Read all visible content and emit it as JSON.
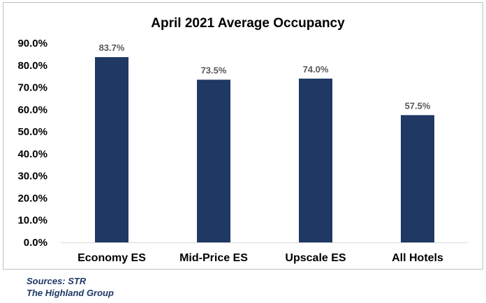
{
  "chart_data": {
    "type": "bar",
    "title": "April 2021 Average Occupancy",
    "categories": [
      "Economy ES",
      "Mid-Price ES",
      "Upscale ES",
      "All Hotels"
    ],
    "values": [
      83.7,
      73.5,
      74.0,
      57.5
    ],
    "data_labels": [
      "83.7%",
      "73.5%",
      "74.0%",
      "57.5%"
    ],
    "ylim": [
      0,
      90
    ],
    "yticks": [
      0,
      10,
      20,
      30,
      40,
      50,
      60,
      70,
      80,
      90
    ],
    "ytick_labels": [
      "0.0%",
      "10.0%",
      "20.0%",
      "30.0%",
      "40.0%",
      "50.0%",
      "60.0%",
      "70.0%",
      "80.0%",
      "90.0%"
    ],
    "xlabel": "",
    "ylabel": "",
    "grid": false,
    "bar_color": "#1f3864"
  },
  "sources": {
    "line1": "Sources: STR",
    "line2": "The Highland Group"
  }
}
